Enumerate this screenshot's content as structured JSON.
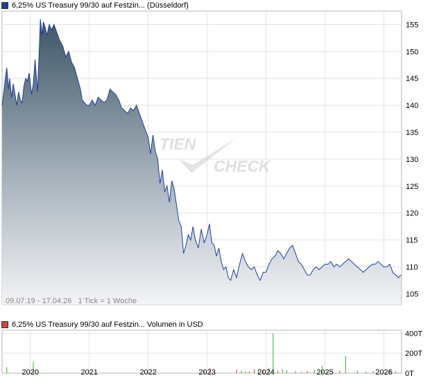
{
  "legend_main": {
    "label": "6,25% US Treasury 99/30 auf Festzin... (Düsseldorf)",
    "color": "#1d3f8f"
  },
  "legend_volume": {
    "label": "6,25% US Treasury 99/30 auf Festzin... Volumen in USD",
    "color": "#cc4444"
  },
  "info_text": "09.07.19 - 17.04.26   1 Tick = 1 Woche",
  "watermark": {
    "part1": "TIEN",
    "part2": "CHECK"
  },
  "chart_data": [
    {
      "type": "area",
      "x_ticks": [
        "2020",
        "2021",
        "2022",
        "2023",
        "2024",
        "2025",
        "2026"
      ],
      "y_ticks": [
        105,
        110,
        115,
        120,
        125,
        130,
        135,
        140,
        145,
        150,
        155
      ],
      "ylim": [
        103,
        157.5
      ],
      "xlim": [
        2019.52,
        2026.3
      ],
      "grid": true,
      "series": [
        {
          "x": [
            2019.52,
            2019.55,
            2019.58,
            2019.6,
            2019.63,
            2019.65,
            2019.68,
            2019.71,
            2019.74,
            2019.77,
            2019.8,
            2019.83,
            2019.86,
            2019.89,
            2019.92,
            2019.95,
            2019.98,
            2020.02,
            2020.05,
            2020.08,
            2020.12,
            2020.15,
            2020.17,
            2020.2,
            2020.22,
            2020.25,
            2020.28,
            2020.32,
            2020.36,
            2020.4,
            2020.45,
            2020.5,
            2020.55,
            2020.6,
            2020.65,
            2020.7,
            2020.75,
            2020.8,
            2020.85,
            2020.88,
            2020.92,
            2020.96,
            2021.0,
            2021.05,
            2021.1,
            2021.15,
            2021.2,
            2021.25,
            2021.3,
            2021.35,
            2021.4,
            2021.45,
            2021.5,
            2021.55,
            2021.6,
            2021.65,
            2021.7,
            2021.75,
            2021.8,
            2021.85,
            2021.9,
            2021.95,
            2022.0,
            2022.04,
            2022.08,
            2022.12,
            2022.16,
            2022.2,
            2022.24,
            2022.28,
            2022.32,
            2022.36,
            2022.4,
            2022.44,
            2022.48,
            2022.52,
            2022.56,
            2022.6,
            2022.64,
            2022.68,
            2022.72,
            2022.76,
            2022.8,
            2022.85,
            2022.9,
            2022.95,
            2023.0,
            2023.04,
            2023.08,
            2023.12,
            2023.16,
            2023.2,
            2023.24,
            2023.28,
            2023.32,
            2023.36,
            2023.4,
            2023.45,
            2023.5,
            2023.55,
            2023.6,
            2023.65,
            2023.7,
            2023.75,
            2023.8,
            2023.85,
            2023.9,
            2023.95,
            2024.0,
            2024.05,
            2024.1,
            2024.15,
            2024.2,
            2024.25,
            2024.3,
            2024.35,
            2024.4,
            2024.45,
            2024.5,
            2024.55,
            2024.6,
            2024.65,
            2024.7,
            2024.75,
            2024.8,
            2024.85,
            2024.9,
            2024.95,
            2025.0,
            2025.05,
            2025.1,
            2025.15,
            2025.2,
            2025.25,
            2025.3,
            2025.35,
            2025.4,
            2025.45,
            2025.5,
            2025.55,
            2025.6,
            2025.65,
            2025.7,
            2025.75,
            2025.8,
            2025.85,
            2025.9,
            2025.95,
            2026.0,
            2026.05,
            2026.1,
            2026.15,
            2026.2,
            2026.25,
            2026.29
          ],
          "y": [
            140.0,
            142.5,
            145.5,
            147.0,
            143.0,
            145.0,
            141.5,
            144.0,
            142.0,
            140.0,
            142.5,
            141.0,
            140.5,
            143.5,
            145.0,
            144.5,
            146.0,
            142.0,
            144.0,
            148.5,
            142.5,
            150.0,
            156.0,
            153.0,
            155.5,
            154.5,
            153.0,
            155.0,
            154.0,
            155.0,
            153.5,
            152.0,
            151.0,
            149.0,
            150.0,
            148.0,
            147.0,
            145.0,
            143.0,
            141.0,
            140.5,
            140.0,
            140.0,
            141.0,
            140.0,
            141.5,
            141.0,
            140.5,
            141.0,
            143.0,
            142.5,
            142.0,
            141.0,
            139.5,
            139.0,
            138.5,
            139.5,
            139.0,
            140.0,
            138.5,
            137.0,
            135.5,
            134.0,
            131.0,
            134.5,
            131.5,
            130.0,
            125.5,
            128.0,
            124.0,
            125.0,
            122.0,
            126.0,
            124.5,
            121.5,
            118.5,
            117.5,
            112.5,
            114.0,
            116.0,
            115.0,
            117.5,
            115.0,
            113.5,
            117.0,
            114.5,
            116.0,
            118.0,
            114.5,
            114.0,
            112.0,
            113.5,
            111.0,
            109.5,
            110.0,
            108.0,
            107.5,
            109.5,
            108.0,
            110.5,
            112.5,
            111.0,
            110.0,
            109.5,
            110.0,
            108.5,
            107.5,
            109.0,
            109.0,
            110.5,
            111.5,
            112.0,
            113.0,
            112.5,
            111.5,
            112.5,
            113.5,
            114.0,
            112.5,
            111.0,
            110.5,
            109.5,
            108.5,
            108.5,
            109.5,
            110.0,
            109.5,
            110.0,
            110.5,
            110.5,
            111.0,
            110.0,
            110.5,
            110.0,
            110.5,
            111.0,
            111.5,
            111.0,
            110.5,
            110.0,
            109.5,
            109.0,
            109.5,
            110.0,
            110.5,
            110.5,
            111.0,
            110.5,
            110.0,
            110.0,
            110.5,
            109.0,
            108.5,
            108.0,
            108.5
          ]
        }
      ]
    },
    {
      "type": "bar",
      "y_ticks": [
        "0T",
        "200T",
        "400T"
      ],
      "ylim": [
        0,
        430
      ],
      "x": [
        2019.6,
        2020.05,
        2022.0,
        2022.95,
        2023.05,
        2023.5,
        2023.58,
        2023.65,
        2023.72,
        2023.8,
        2023.87,
        2023.95,
        2024.05,
        2024.12,
        2024.2,
        2024.28,
        2024.35,
        2024.5,
        2024.6,
        2024.7,
        2024.82,
        2024.95,
        2025.05,
        2025.25,
        2025.35,
        2025.55,
        2025.7,
        2025.82,
        2026.1,
        2026.2
      ],
      "values": [
        60,
        110,
        15,
        30,
        50,
        35,
        25,
        15,
        20,
        40,
        25,
        30,
        55,
        400,
        25,
        40,
        30,
        18,
        15,
        20,
        35,
        75,
        20,
        25,
        175,
        25,
        15,
        20,
        40,
        15
      ],
      "up": [
        true,
        true,
        true,
        true,
        false,
        false,
        true,
        false,
        true,
        false,
        true,
        false,
        true,
        true,
        false,
        true,
        true,
        false,
        true,
        false,
        true,
        true,
        true,
        false,
        true,
        true,
        false,
        true,
        true,
        false
      ],
      "color_up": "#33aa33",
      "color_down": "#cc3333"
    }
  ]
}
